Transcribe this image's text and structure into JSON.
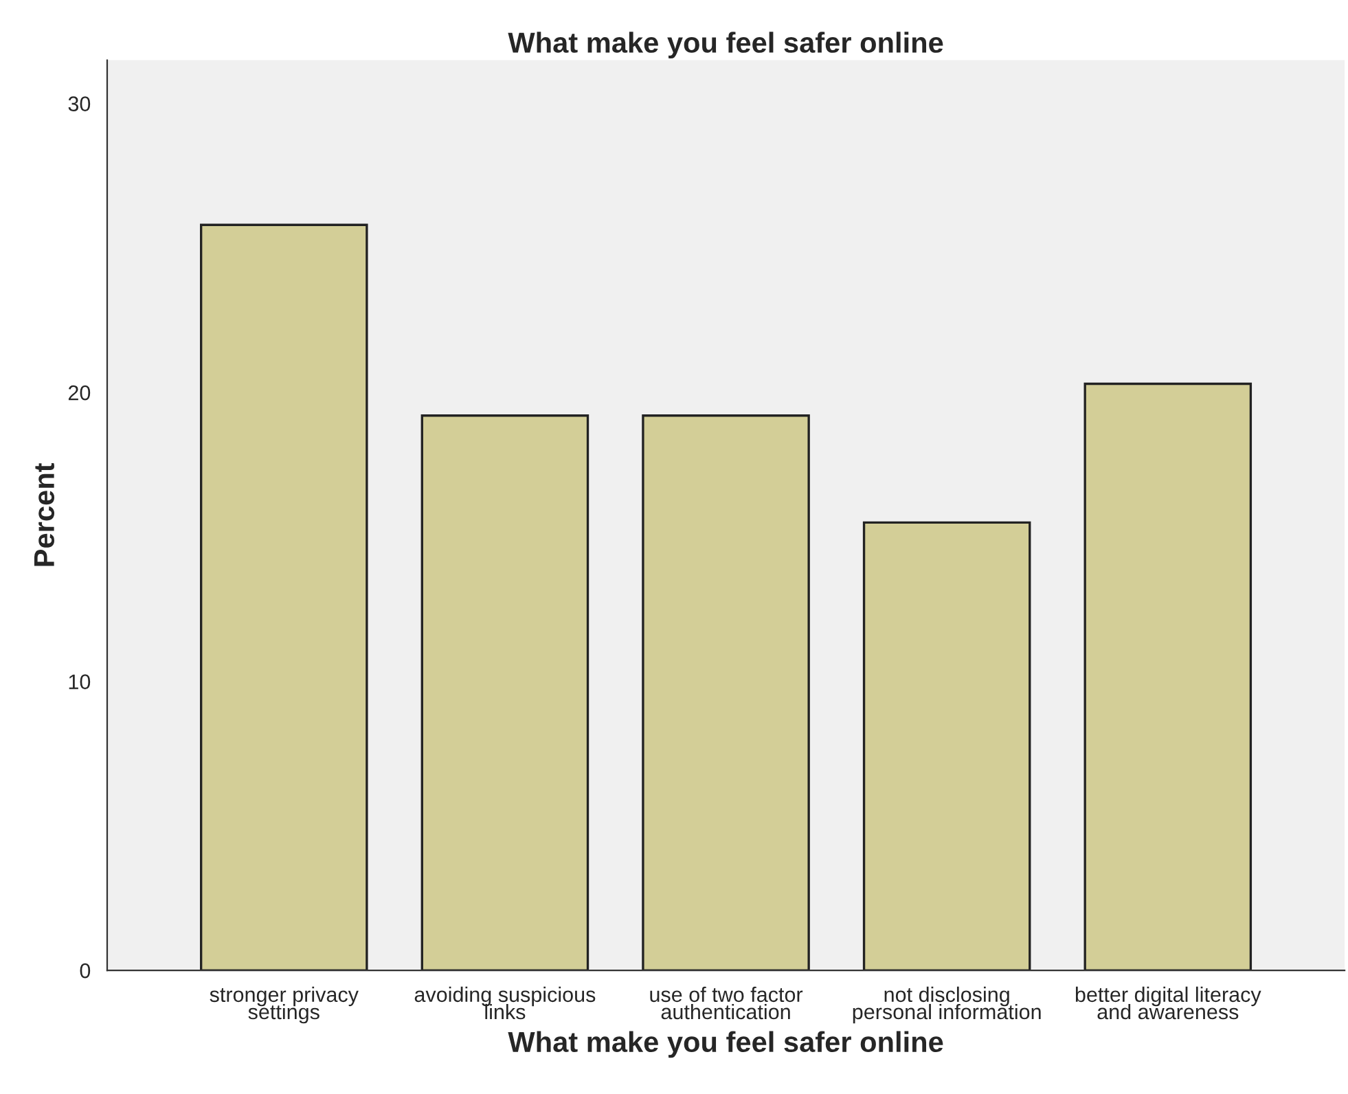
{
  "chart_data": {
    "type": "bar",
    "title": "What make you feel safer online",
    "xlabel": "What make you feel safer online",
    "ylabel": "Percent",
    "categories": [
      "stronger privacy\nsettings",
      "avoiding suspicious\nlinks",
      "use of two factor\nauthentication",
      "not disclosing\npersonal information",
      "better digital literacy\nand awareness"
    ],
    "values": [
      25.8,
      19.2,
      19.2,
      15.5,
      20.3
    ],
    "color": "#d3ce97",
    "ylim": [
      0,
      31.5
    ],
    "yticks": [
      0,
      10,
      20,
      30
    ],
    "grid": false,
    "legend": false
  }
}
